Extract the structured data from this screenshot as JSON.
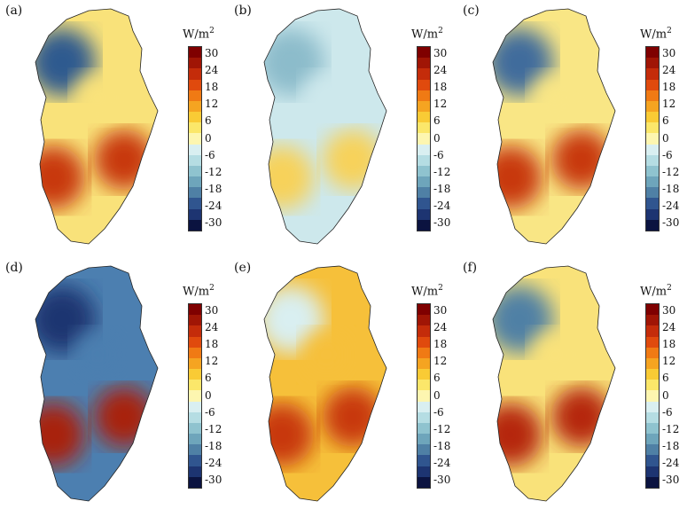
{
  "figure": {
    "colorbar": {
      "unit": "W/m",
      "unit_sup": "2",
      "ticks": [
        "30",
        "24",
        "18",
        "12",
        "6",
        "0",
        "-6",
        "-12",
        "-18",
        "-24",
        "-30"
      ],
      "colors": [
        "#7f0000",
        "#a01505",
        "#c42c0a",
        "#e04a0d",
        "#f07a14",
        "#f5a421",
        "#f9cb35",
        "#fbe76a",
        "#fdf6b0",
        "#d9eff1",
        "#b5dde3",
        "#8fc3cf",
        "#6ea5bb",
        "#4f80a5",
        "#30558f",
        "#1d3471",
        "#0b1340"
      ]
    },
    "panels": [
      {
        "label": "(a)",
        "palette": {
          "base": "#f9e27a",
          "hi": "#c8380f",
          "lo": "#2f5a8f"
        }
      },
      {
        "label": "(b)",
        "palette": {
          "base": "#cde8ec",
          "hi": "#f7d25a",
          "lo": "#8cbccb"
        }
      },
      {
        "label": "(c)",
        "palette": {
          "base": "#f9e685",
          "hi": "#c8380f",
          "lo": "#3f6c9c"
        }
      },
      {
        "label": "(d)",
        "palette": {
          "base": "#4c7fb0",
          "hi": "#a8220a",
          "lo": "#1d3471"
        }
      },
      {
        "label": "(e)",
        "palette": {
          "base": "#f6c03a",
          "hi": "#c8380f",
          "lo": "#d9eff1"
        }
      },
      {
        "label": "(f)",
        "palette": {
          "base": "#f9e27a",
          "hi": "#b5280c",
          "lo": "#4f80a5"
        }
      }
    ]
  }
}
